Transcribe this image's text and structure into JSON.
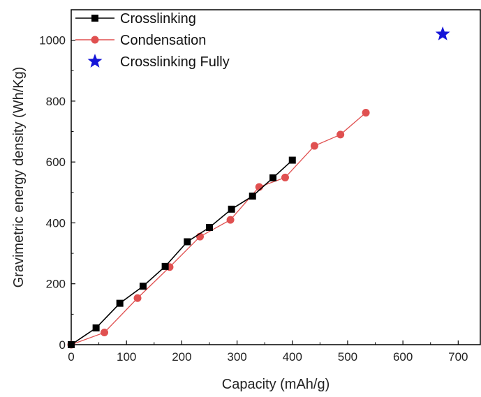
{
  "chart_data": {
    "type": "scatter",
    "title": "",
    "xlabel": "Capacity (mAh/g)",
    "ylabel": "Gravimetric energy density (Wh/Kg)",
    "xlim": [
      0,
      740
    ],
    "ylim": [
      0,
      1100
    ],
    "xticks": [
      0,
      100,
      200,
      300,
      400,
      500,
      600,
      700
    ],
    "yticks": [
      0,
      200,
      400,
      600,
      800,
      1000
    ],
    "grid": false,
    "legend_position": "top-left",
    "series": [
      {
        "name": "Crosslinking",
        "marker": "square",
        "line": true,
        "color": "#000000",
        "x": [
          0,
          45,
          88,
          130,
          170,
          210,
          250,
          290,
          328,
          365,
          400
        ],
        "y": [
          0,
          55,
          136,
          192,
          257,
          338,
          385,
          445,
          488,
          548,
          606
        ]
      },
      {
        "name": "Condensation",
        "marker": "circle",
        "line": true,
        "color": "#e05050",
        "x": [
          0,
          60,
          120,
          178,
          233,
          288,
          340,
          387,
          440,
          487,
          533
        ],
        "y": [
          0,
          40,
          153,
          255,
          355,
          410,
          518,
          549,
          653,
          690,
          762
        ]
      },
      {
        "name": "Crosslinking Fully",
        "marker": "star",
        "line": false,
        "color": "#1515d8",
        "x": [
          672
        ],
        "y": [
          1020
        ]
      }
    ]
  }
}
